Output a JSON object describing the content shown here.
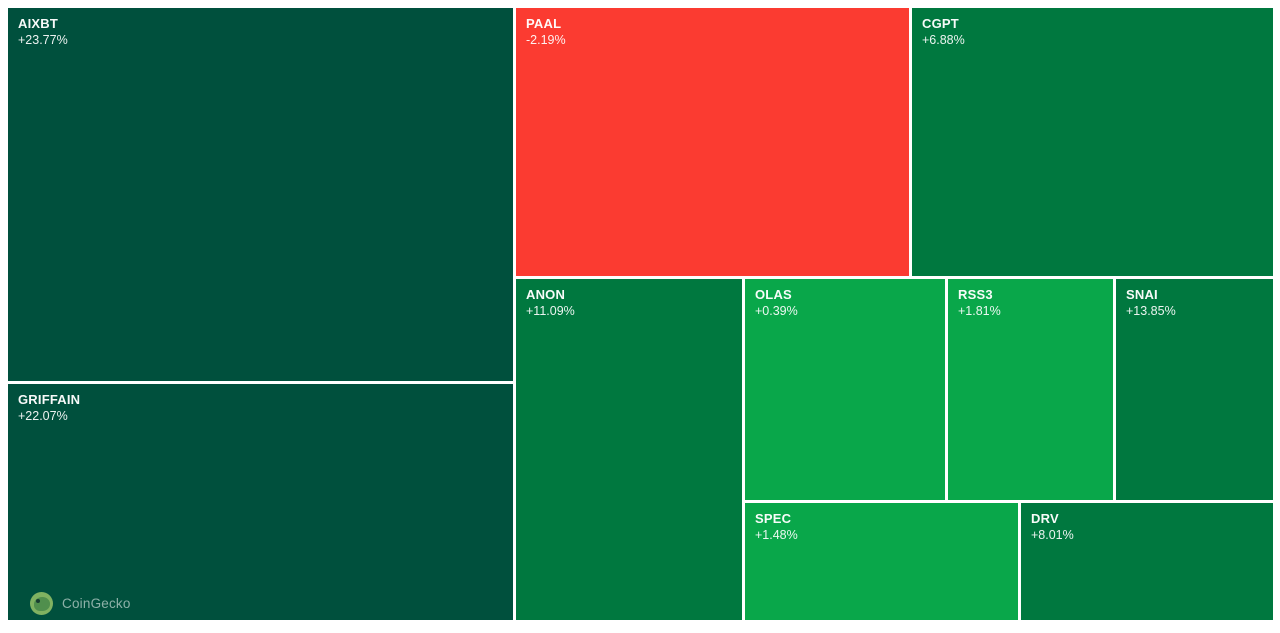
{
  "watermark": {
    "label": "CoinGecko"
  },
  "colors": {
    "background": "#ffffff",
    "strong_gain_green": "#00503d",
    "gain_green": "#00783f",
    "flat_green": "#09a74a",
    "loss_red": "#fb3b31",
    "label_text": "#ffffff"
  },
  "chart_data": {
    "type": "heatmap",
    "subtype": "treemap",
    "title": "",
    "metric": "price change %",
    "legend": "none",
    "items": [
      {
        "symbol": "AIXBT",
        "change": "+23.77%",
        "value": 23.77,
        "color": "#00503d"
      },
      {
        "symbol": "GRIFFAIN",
        "change": "+22.07%",
        "value": 22.07,
        "color": "#00503d"
      },
      {
        "symbol": "PAAL",
        "change": "-2.19%",
        "value": -2.19,
        "color": "#fb3b31"
      },
      {
        "symbol": "CGPT",
        "change": "+6.88%",
        "value": 6.88,
        "color": "#00783f"
      },
      {
        "symbol": "ANON",
        "change": "+11.09%",
        "value": 11.09,
        "color": "#00783f"
      },
      {
        "symbol": "OLAS",
        "change": "+0.39%",
        "value": 0.39,
        "color": "#09a74a"
      },
      {
        "symbol": "RSS3",
        "change": "+1.81%",
        "value": 1.81,
        "color": "#09a74a"
      },
      {
        "symbol": "SNAI",
        "change": "+13.85%",
        "value": 13.85,
        "color": "#00783f"
      },
      {
        "symbol": "SPEC",
        "change": "+1.48%",
        "value": 1.48,
        "color": "#09a74a"
      },
      {
        "symbol": "DRV",
        "change": "+8.01%",
        "value": 8.01,
        "color": "#00783f"
      }
    ]
  }
}
